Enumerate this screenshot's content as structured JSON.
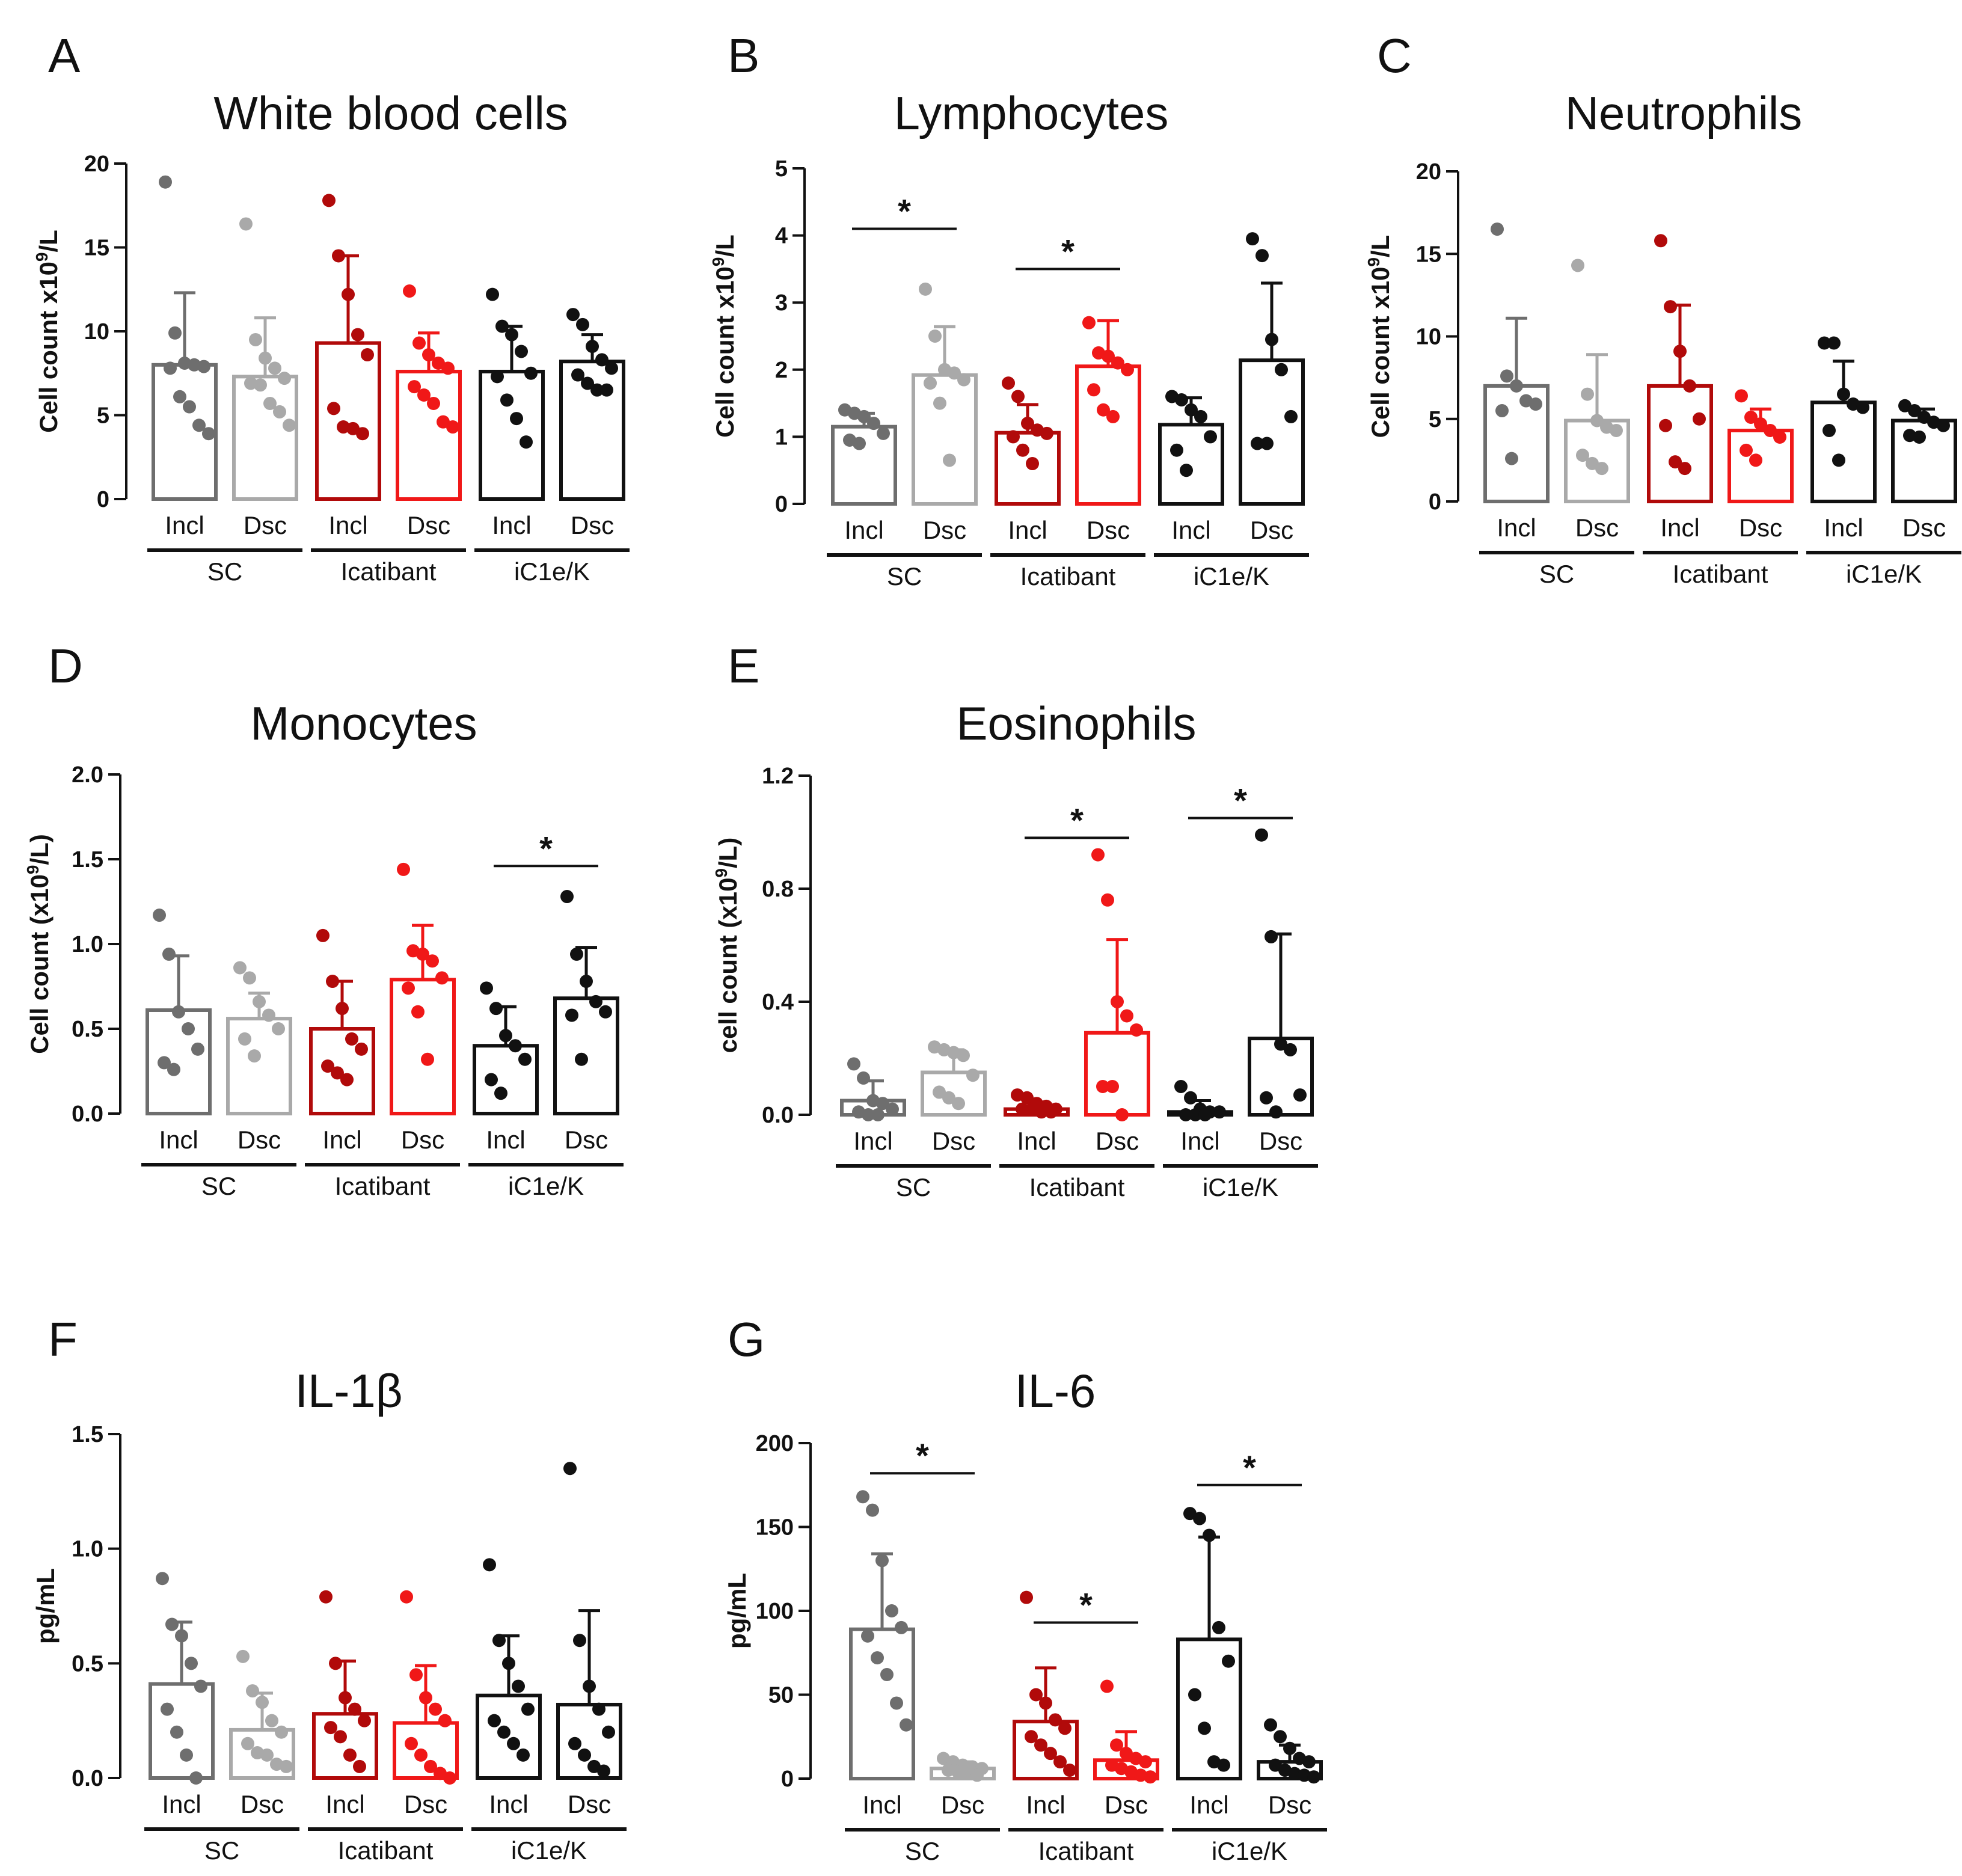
{
  "figure": {
    "categories": [
      "Incl",
      "Dsc"
    ],
    "groups": [
      "SC",
      "Icatibant",
      "iC1e/K"
    ],
    "series_colors": [
      "#6e6e6e",
      "#a9a9a9",
      "#b10a0a",
      "#f01818",
      "#111111",
      "#111111"
    ]
  },
  "chart_data": [
    {
      "letter": "A",
      "type": "bar",
      "title": "White blood cells",
      "ylabel_pre": "Cell count x10",
      "ylabel_sup": "9",
      "ylabel_post": "/L",
      "ylim": [
        0,
        20
      ],
      "yticks": [
        "0",
        "5",
        "10",
        "15",
        "20"
      ],
      "categories": [
        "Incl",
        "Dsc",
        "Incl",
        "Dsc",
        "Incl",
        "Dsc"
      ],
      "groups": [
        "SC",
        "Icatibant",
        "iC1e/K"
      ],
      "means": [
        8.0,
        7.3,
        9.3,
        7.6,
        7.6,
        8.2
      ],
      "sd": [
        4.3,
        3.5,
        5.2,
        2.3,
        2.7,
        1.6
      ],
      "points": [
        [
          18.9,
          9.9,
          8.1,
          8.0,
          7.9,
          7.8,
          6.1,
          5.5,
          4.4,
          3.9
        ],
        [
          16.4,
          9.5,
          8.4,
          7.8,
          7.2,
          6.9,
          6.8,
          5.7,
          5.2,
          4.4
        ],
        [
          17.8,
          14.5,
          12.2,
          9.8,
          8.6,
          5.4,
          4.3,
          4.2,
          3.9
        ],
        [
          12.4,
          9.3,
          8.6,
          8.1,
          7.8,
          6.7,
          6.2,
          5.7,
          4.6,
          4.3
        ],
        [
          12.2,
          10.3,
          9.8,
          8.8,
          7.5,
          7.3,
          5.9,
          4.8,
          3.4
        ],
        [
          11.0,
          10.4,
          9.1,
          8.3,
          7.8,
          7.4,
          6.9,
          6.5,
          6.5
        ]
      ],
      "significance": []
    },
    {
      "letter": "B",
      "type": "bar",
      "title": "Lymphocytes",
      "ylabel_pre": "Cell count x10",
      "ylabel_sup": "9",
      "ylabel_post": "/L",
      "ylim": [
        0,
        5
      ],
      "yticks": [
        "0",
        "1",
        "2",
        "3",
        "4",
        "5"
      ],
      "categories": [
        "Incl",
        "Dsc",
        "Incl",
        "Dsc",
        "Incl",
        "Dsc"
      ],
      "groups": [
        "SC",
        "Icatibant",
        "iC1e/K"
      ],
      "means": [
        1.15,
        1.92,
        1.06,
        2.05,
        1.18,
        2.14
      ],
      "sd": [
        0.2,
        0.72,
        0.42,
        0.68,
        0.4,
        1.15
      ],
      "points": [
        [
          1.4,
          1.35,
          1.3,
          1.2,
          1.05,
          0.95,
          0.9
        ],
        [
          3.2,
          2.5,
          2.0,
          1.95,
          1.85,
          1.8,
          1.5,
          0.65
        ],
        [
          1.8,
          1.6,
          1.2,
          1.1,
          1.05,
          1.0,
          0.8,
          0.6
        ],
        [
          2.7,
          2.25,
          2.2,
          2.1,
          2.0,
          1.7,
          1.4,
          1.3
        ],
        [
          1.6,
          1.55,
          1.4,
          1.3,
          1.0,
          0.8,
          0.5
        ],
        [
          3.95,
          3.7,
          2.45,
          2.0,
          1.3,
          0.9,
          0.9
        ]
      ],
      "significance": [
        {
          "from": 0,
          "to": 1,
          "y": 4.1,
          "label": "*"
        },
        {
          "from": 2,
          "to": 3,
          "y": 3.5,
          "label": "*"
        }
      ]
    },
    {
      "letter": "C",
      "type": "bar",
      "title": "Neutrophils",
      "ylabel_pre": "Cell count x10",
      "ylabel_sup": "9",
      "ylabel_post": "/L",
      "ylim": [
        0,
        20
      ],
      "yticks": [
        "0",
        "5",
        "10",
        "15",
        "20"
      ],
      "categories": [
        "Incl",
        "Dsc",
        "Incl",
        "Dsc",
        "Incl",
        "Dsc"
      ],
      "groups": [
        "SC",
        "Icatibant",
        "iC1e/K"
      ],
      "means": [
        7.0,
        4.9,
        7.0,
        4.3,
        6.0,
        4.9
      ],
      "sd": [
        4.1,
        4.0,
        4.9,
        1.3,
        2.5,
        0.7
      ],
      "points": [
        [
          16.5,
          7.6,
          7.0,
          6.1,
          5.9,
          5.5,
          2.6
        ],
        [
          14.3,
          6.5,
          4.9,
          4.5,
          4.3,
          2.8,
          2.3,
          2.0
        ],
        [
          15.8,
          11.8,
          9.1,
          7.0,
          5.0,
          4.6,
          2.4,
          2.0
        ],
        [
          6.4,
          5.1,
          4.7,
          4.3,
          3.9,
          3.1,
          2.5
        ],
        [
          9.6,
          9.6,
          6.5,
          5.9,
          5.7,
          4.3,
          2.5
        ],
        [
          5.8,
          5.5,
          5.1,
          4.8,
          4.6,
          4.0,
          3.9
        ]
      ],
      "significance": []
    },
    {
      "letter": "D",
      "type": "bar",
      "title": "Monocytes",
      "ylabel_pre": "Cell count (x10",
      "ylabel_sup": "9",
      "ylabel_post": "/L)",
      "ylim": [
        0,
        2
      ],
      "yticks": [
        "0.0",
        "0.5",
        "1.0",
        "1.5",
        "2.0"
      ],
      "categories": [
        "Incl",
        "Dsc",
        "Incl",
        "Dsc",
        "Incl",
        "Dsc"
      ],
      "groups": [
        "SC",
        "Icatibant",
        "iC1e/K"
      ],
      "means": [
        0.61,
        0.56,
        0.5,
        0.79,
        0.4,
        0.68
      ],
      "sd": [
        0.32,
        0.15,
        0.28,
        0.32,
        0.23,
        0.3
      ],
      "points": [
        [
          1.17,
          0.94,
          0.6,
          0.5,
          0.38,
          0.3,
          0.26
        ],
        [
          0.86,
          0.8,
          0.66,
          0.58,
          0.5,
          0.44,
          0.34
        ],
        [
          1.05,
          0.78,
          0.62,
          0.44,
          0.38,
          0.28,
          0.24,
          0.2
        ],
        [
          1.44,
          0.96,
          0.94,
          0.9,
          0.8,
          0.74,
          0.6,
          0.32
        ],
        [
          0.74,
          0.62,
          0.46,
          0.4,
          0.32,
          0.2,
          0.12
        ],
        [
          1.28,
          0.94,
          0.78,
          0.66,
          0.6,
          0.58,
          0.32
        ]
      ],
      "significance": [
        {
          "from": 4,
          "to": 5,
          "y": 1.46,
          "label": "*"
        }
      ]
    },
    {
      "letter": "E",
      "type": "bar",
      "title": "Eosinophils",
      "ylabel_pre": "cell count (x10",
      "ylabel_sup": "9",
      "ylabel_post": "/L)",
      "ylim": [
        0,
        1.2
      ],
      "yticks": [
        "0.0",
        "0.4",
        "0.8",
        "1.2"
      ],
      "categories": [
        "Incl",
        "Dsc",
        "Incl",
        "Dsc",
        "Incl",
        "Dsc"
      ],
      "groups": [
        "SC",
        "Icatibant",
        "iC1e/K"
      ],
      "means": [
        0.05,
        0.15,
        0.02,
        0.29,
        0.01,
        0.27
      ],
      "sd": [
        0.07,
        0.08,
        0.025,
        0.33,
        0.04,
        0.37
      ],
      "points": [
        [
          0.18,
          0.13,
          0.05,
          0.04,
          0.02,
          0.01,
          0.0,
          0.0
        ],
        [
          0.24,
          0.23,
          0.22,
          0.21,
          0.14,
          0.08,
          0.06,
          0.04
        ],
        [
          0.07,
          0.06,
          0.04,
          0.03,
          0.02,
          0.02,
          0.02,
          0.01,
          0.01
        ],
        [
          0.92,
          0.76,
          0.4,
          0.35,
          0.3,
          0.1,
          0.1,
          0.0
        ],
        [
          0.1,
          0.06,
          0.02,
          0.01,
          0.01,
          0.0,
          0.0,
          0.0
        ],
        [
          0.99,
          0.63,
          0.25,
          0.23,
          0.07,
          0.06,
          0.01
        ]
      ],
      "significance": [
        {
          "from": 2,
          "to": 3,
          "y": 0.98,
          "label": "*"
        },
        {
          "from": 4,
          "to": 5,
          "y": 1.05,
          "label": "*"
        }
      ]
    },
    {
      "letter": "F",
      "type": "bar",
      "title": "IL-1β",
      "ylabel_pre": "pg/mL",
      "ylabel_sup": "",
      "ylabel_post": "",
      "ylim": [
        0,
        1.5
      ],
      "yticks": [
        "0.0",
        "0.5",
        "1.0",
        "1.5"
      ],
      "categories": [
        "Incl",
        "Dsc",
        "Incl",
        "Dsc",
        "Incl",
        "Dsc"
      ],
      "groups": [
        "SC",
        "Icatibant",
        "iC1e/K"
      ],
      "means": [
        0.41,
        0.21,
        0.28,
        0.24,
        0.36,
        0.32
      ],
      "sd": [
        0.27,
        0.16,
        0.23,
        0.25,
        0.26,
        0.41
      ],
      "points": [
        [
          0.87,
          0.67,
          0.62,
          0.5,
          0.4,
          0.3,
          0.2,
          0.1,
          0.0
        ],
        [
          0.53,
          0.38,
          0.33,
          0.25,
          0.2,
          0.15,
          0.11,
          0.1,
          0.06,
          0.05
        ],
        [
          0.79,
          0.5,
          0.35,
          0.3,
          0.25,
          0.22,
          0.18,
          0.1,
          0.05
        ],
        [
          0.79,
          0.45,
          0.35,
          0.3,
          0.25,
          0.15,
          0.1,
          0.05,
          0.02,
          0.0
        ],
        [
          0.93,
          0.6,
          0.5,
          0.4,
          0.3,
          0.25,
          0.2,
          0.15,
          0.1
        ],
        [
          1.35,
          0.6,
          0.4,
          0.3,
          0.2,
          0.15,
          0.1,
          0.05,
          0.03
        ]
      ],
      "significance": []
    },
    {
      "letter": "G",
      "type": "bar",
      "title": "IL-6",
      "ylabel_pre": "pg/mL",
      "ylabel_sup": "",
      "ylabel_post": "",
      "ylim": [
        0,
        200
      ],
      "yticks": [
        "0",
        "50",
        "100",
        "150",
        "200"
      ],
      "categories": [
        "Incl",
        "Dsc",
        "Incl",
        "Dsc",
        "Incl",
        "Dsc"
      ],
      "groups": [
        "SC",
        "Icatibant",
        "iC1e/K"
      ],
      "means": [
        89,
        6,
        34,
        11,
        83,
        10
      ],
      "sd": [
        45,
        4,
        32,
        17,
        61,
        10
      ],
      "points": [
        [
          168,
          160,
          130,
          100,
          90,
          85,
          72,
          62,
          45,
          32
        ],
        [
          12,
          10,
          8,
          7,
          6,
          5,
          4,
          3,
          2
        ],
        [
          108,
          50,
          45,
          35,
          30,
          25,
          20,
          15,
          10,
          5
        ],
        [
          55,
          20,
          15,
          12,
          10,
          8,
          6,
          4,
          2,
          1
        ],
        [
          158,
          155,
          145,
          90,
          70,
          50,
          30,
          10,
          8
        ],
        [
          32,
          25,
          18,
          12,
          10,
          8,
          5,
          3,
          2,
          1
        ]
      ],
      "significance": [
        {
          "from": 0,
          "to": 1,
          "y": 182,
          "label": "*"
        },
        {
          "from": 2,
          "to": 3,
          "y": 93,
          "label": "*"
        },
        {
          "from": 4,
          "to": 5,
          "y": 175,
          "label": "*"
        }
      ]
    }
  ]
}
